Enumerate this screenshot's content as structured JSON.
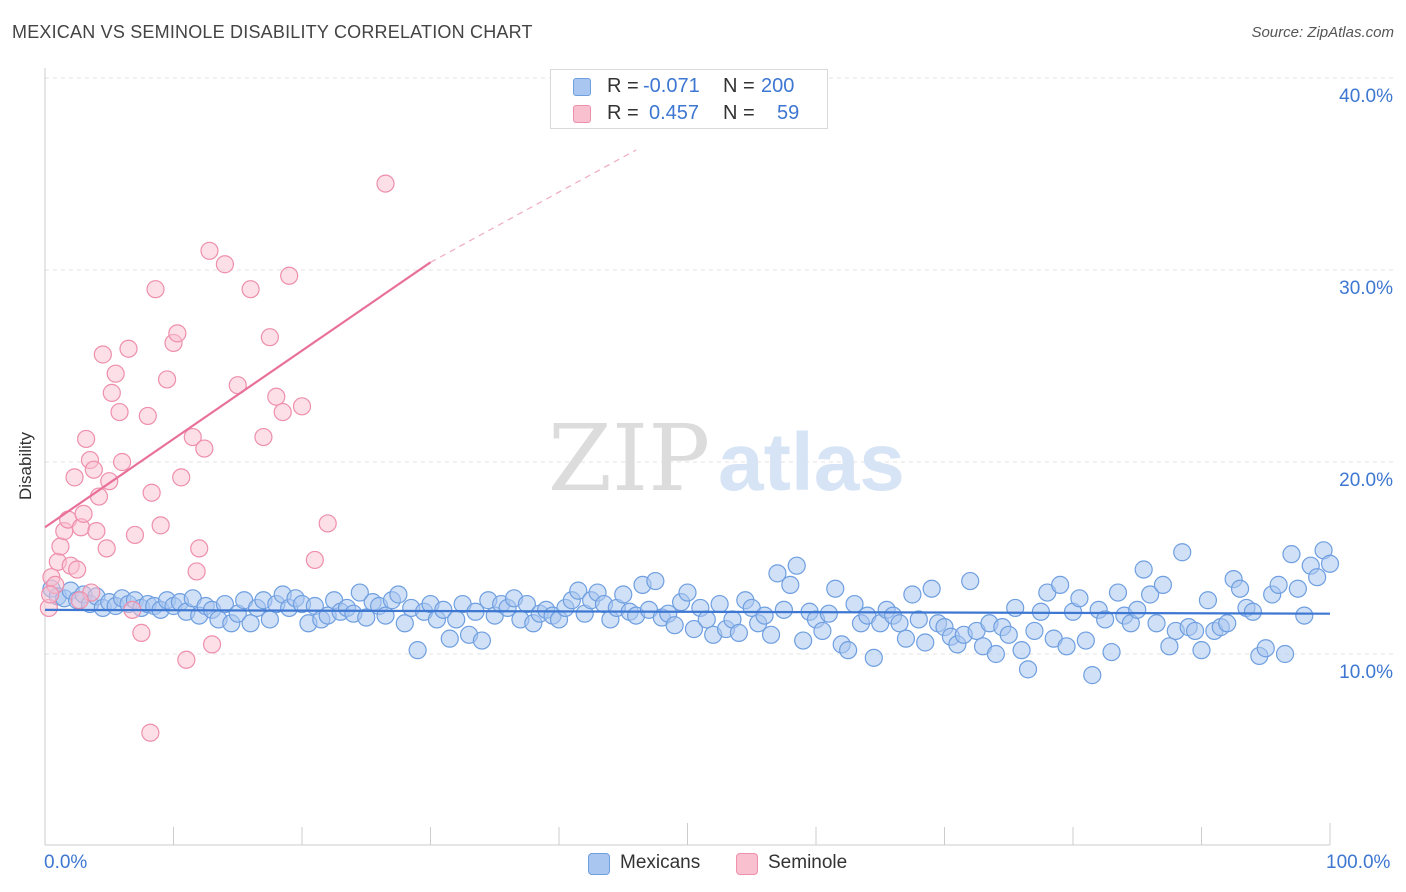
{
  "title": "MEXICAN VS SEMINOLE DISABILITY CORRELATION CHART",
  "source": "Source: ZipAtlas.com",
  "watermark": {
    "zip": "ZIP",
    "atlas": "atlas"
  },
  "legend": {
    "rows": [
      {
        "r_label": "R =",
        "r_value": "-0.071",
        "n_label": "N =",
        "n_value": "200",
        "color": "#a9c6f0",
        "border": "#6f9fe0"
      },
      {
        "r_label": "R =",
        "r_value": "0.457",
        "n_label": "N =",
        "n_value": "59",
        "color": "#f9c0d0",
        "border": "#ee8fac"
      }
    ]
  },
  "bottom_legend": [
    {
      "label": "Mexicans",
      "color": "#a9c6f0",
      "border": "#6f9fe0"
    },
    {
      "label": "Seminole",
      "color": "#f9c0d0",
      "border": "#ee8fac"
    }
  ],
  "axes": {
    "x_min_label": "0.0%",
    "x_max_label": "100.0%",
    "y_label": "Disability",
    "y_ticks": [
      "10.0%",
      "20.0%",
      "30.0%",
      "40.0%"
    ]
  },
  "chart_data": {
    "type": "scatter",
    "title": "MEXICAN VS SEMINOLE DISABILITY CORRELATION CHART",
    "xlabel": "",
    "ylabel": "Disability",
    "xlim": [
      0,
      100
    ],
    "ylim": [
      0,
      42
    ],
    "y_ticks": [
      10,
      20,
      30,
      40
    ],
    "grid": "horizontal dashed",
    "legend_position": "top-center",
    "series": [
      {
        "name": "Mexicans",
        "color": "#6f9fe0",
        "fill": "#a9c6f0",
        "trend": {
          "x": [
            0,
            100
          ],
          "y": [
            12.3,
            12.1
          ]
        },
        "points": [
          [
            0.5,
            13.4
          ],
          [
            1,
            13.0
          ],
          [
            1.5,
            12.9
          ],
          [
            2,
            13.3
          ],
          [
            2.5,
            12.8
          ],
          [
            3,
            13.1
          ],
          [
            3.5,
            12.6
          ],
          [
            4,
            13.0
          ],
          [
            4.5,
            12.4
          ],
          [
            5,
            12.7
          ],
          [
            5.5,
            12.5
          ],
          [
            6,
            12.9
          ],
          [
            6.5,
            12.6
          ],
          [
            7,
            12.8
          ],
          [
            7.5,
            12.4
          ],
          [
            8,
            12.6
          ],
          [
            8.5,
            12.5
          ],
          [
            9,
            12.3
          ],
          [
            9.5,
            12.8
          ],
          [
            10,
            12.5
          ],
          [
            10.5,
            12.7
          ],
          [
            11,
            12.2
          ],
          [
            11.5,
            12.9
          ],
          [
            12,
            12.0
          ],
          [
            12.5,
            12.5
          ],
          [
            13,
            12.3
          ],
          [
            13.5,
            11.8
          ],
          [
            14,
            12.6
          ],
          [
            14.5,
            11.6
          ],
          [
            15,
            12.1
          ],
          [
            15.5,
            12.8
          ],
          [
            16,
            11.6
          ],
          [
            16.5,
            12.4
          ],
          [
            17,
            12.8
          ],
          [
            17.5,
            11.8
          ],
          [
            18,
            12.6
          ],
          [
            18.5,
            13.1
          ],
          [
            19,
            12.4
          ],
          [
            19.5,
            12.9
          ],
          [
            20,
            12.6
          ],
          [
            20.5,
            11.6
          ],
          [
            21,
            12.5
          ],
          [
            21.5,
            11.8
          ],
          [
            22,
            12.0
          ],
          [
            22.5,
            12.8
          ],
          [
            23,
            12.2
          ],
          [
            23.5,
            12.4
          ],
          [
            24,
            12.1
          ],
          [
            24.5,
            13.2
          ],
          [
            25,
            11.9
          ],
          [
            25.5,
            12.7
          ],
          [
            26,
            12.5
          ],
          [
            26.5,
            12.0
          ],
          [
            27,
            12.8
          ],
          [
            27.5,
            13.1
          ],
          [
            28,
            11.6
          ],
          [
            28.5,
            12.4
          ],
          [
            29,
            10.2
          ],
          [
            29.5,
            12.2
          ],
          [
            30,
            12.6
          ],
          [
            30.5,
            11.8
          ],
          [
            31,
            12.3
          ],
          [
            31.5,
            10.8
          ],
          [
            32,
            11.8
          ],
          [
            32.5,
            12.6
          ],
          [
            33,
            11.0
          ],
          [
            33.5,
            12.2
          ],
          [
            34,
            10.7
          ],
          [
            34.5,
            12.8
          ],
          [
            35,
            12.0
          ],
          [
            35.5,
            12.6
          ],
          [
            36,
            12.4
          ],
          [
            36.5,
            12.9
          ],
          [
            37,
            11.8
          ],
          [
            37.5,
            12.6
          ],
          [
            38,
            11.6
          ],
          [
            38.5,
            12.1
          ],
          [
            39,
            12.3
          ],
          [
            39.5,
            12.0
          ],
          [
            40,
            11.8
          ],
          [
            40.5,
            12.4
          ],
          [
            41,
            12.8
          ],
          [
            41.5,
            13.3
          ],
          [
            42,
            12.1
          ],
          [
            42.5,
            12.8
          ],
          [
            43,
            13.2
          ],
          [
            43.5,
            12.6
          ],
          [
            44,
            11.8
          ],
          [
            44.5,
            12.4
          ],
          [
            45,
            13.1
          ],
          [
            45.5,
            12.2
          ],
          [
            46,
            12.0
          ],
          [
            46.5,
            13.6
          ],
          [
            47,
            12.3
          ],
          [
            47.5,
            13.8
          ],
          [
            48,
            11.9
          ],
          [
            48.5,
            12.1
          ],
          [
            49,
            11.5
          ],
          [
            49.5,
            12.7
          ],
          [
            50,
            13.2
          ],
          [
            50.5,
            11.3
          ],
          [
            51,
            12.4
          ],
          [
            51.5,
            11.8
          ],
          [
            52,
            11.0
          ],
          [
            52.5,
            12.6
          ],
          [
            53,
            11.3
          ],
          [
            53.5,
            11.8
          ],
          [
            54,
            11.1
          ],
          [
            54.5,
            12.8
          ],
          [
            55,
            12.4
          ],
          [
            55.5,
            11.6
          ],
          [
            56,
            12.0
          ],
          [
            56.5,
            11.0
          ],
          [
            57,
            14.2
          ],
          [
            57.5,
            12.3
          ],
          [
            58,
            13.6
          ],
          [
            58.5,
            14.6
          ],
          [
            59,
            10.7
          ],
          [
            59.5,
            12.2
          ],
          [
            60,
            11.8
          ],
          [
            60.5,
            11.2
          ],
          [
            61,
            12.1
          ],
          [
            61.5,
            13.4
          ],
          [
            62,
            10.5
          ],
          [
            62.5,
            10.2
          ],
          [
            63,
            12.6
          ],
          [
            63.5,
            11.6
          ],
          [
            64,
            12.0
          ],
          [
            64.5,
            9.8
          ],
          [
            65,
            11.6
          ],
          [
            65.5,
            12.3
          ],
          [
            66,
            12.0
          ],
          [
            66.5,
            11.6
          ],
          [
            67,
            10.8
          ],
          [
            67.5,
            13.1
          ],
          [
            68,
            11.8
          ],
          [
            68.5,
            10.6
          ],
          [
            69,
            13.4
          ],
          [
            69.5,
            11.6
          ],
          [
            70,
            11.4
          ],
          [
            70.5,
            10.9
          ],
          [
            71,
            10.5
          ],
          [
            71.5,
            11.0
          ],
          [
            72,
            13.8
          ],
          [
            72.5,
            11.2
          ],
          [
            73,
            10.4
          ],
          [
            73.5,
            11.6
          ],
          [
            74,
            10.0
          ],
          [
            74.5,
            11.4
          ],
          [
            75,
            11.0
          ],
          [
            75.5,
            12.4
          ],
          [
            76,
            10.2
          ],
          [
            76.5,
            9.2
          ],
          [
            77,
            11.2
          ],
          [
            77.5,
            12.2
          ],
          [
            78,
            13.2
          ],
          [
            78.5,
            10.8
          ],
          [
            79,
            13.6
          ],
          [
            79.5,
            10.4
          ],
          [
            80,
            12.2
          ],
          [
            80.5,
            12.9
          ],
          [
            81,
            10.7
          ],
          [
            81.5,
            8.9
          ],
          [
            82,
            12.3
          ],
          [
            82.5,
            11.8
          ],
          [
            83,
            10.1
          ],
          [
            83.5,
            13.2
          ],
          [
            84,
            12.0
          ],
          [
            84.5,
            11.6
          ],
          [
            85,
            12.3
          ],
          [
            85.5,
            14.4
          ],
          [
            86,
            13.1
          ],
          [
            86.5,
            11.6
          ],
          [
            87,
            13.6
          ],
          [
            87.5,
            10.4
          ],
          [
            88,
            11.2
          ],
          [
            88.5,
            15.3
          ],
          [
            89,
            11.4
          ],
          [
            89.5,
            11.2
          ],
          [
            90,
            10.2
          ],
          [
            90.5,
            12.8
          ],
          [
            91,
            11.2
          ],
          [
            91.5,
            11.4
          ],
          [
            92,
            11.6
          ],
          [
            92.5,
            13.9
          ],
          [
            93,
            13.4
          ],
          [
            93.5,
            12.4
          ],
          [
            94,
            12.2
          ],
          [
            94.5,
            9.9
          ],
          [
            95,
            10.3
          ],
          [
            95.5,
            13.1
          ],
          [
            96,
            13.6
          ],
          [
            96.5,
            10.0
          ],
          [
            97,
            15.2
          ],
          [
            97.5,
            13.4
          ],
          [
            98,
            12.0
          ],
          [
            98.5,
            14.6
          ],
          [
            99,
            14.0
          ],
          [
            99.5,
            15.4
          ],
          [
            100,
            14.7
          ]
        ]
      },
      {
        "name": "Seminole",
        "color": "#ee8fac",
        "fill": "#f9c0d0",
        "trend": {
          "x": [
            0,
            30,
            100
          ],
          "y": [
            16.6,
            30.4,
            56.0
          ]
        },
        "points": [
          [
            0.3,
            12.4
          ],
          [
            0.5,
            14.0
          ],
          [
            0.8,
            13.6
          ],
          [
            1,
            14.8
          ],
          [
            1.2,
            15.6
          ],
          [
            1.5,
            16.4
          ],
          [
            1.8,
            17.0
          ],
          [
            2,
            14.6
          ],
          [
            2.3,
            19.2
          ],
          [
            2.5,
            14.4
          ],
          [
            2.8,
            16.6
          ],
          [
            3,
            17.3
          ],
          [
            3.2,
            21.2
          ],
          [
            3.5,
            20.1
          ],
          [
            3.8,
            19.6
          ],
          [
            4,
            16.4
          ],
          [
            4.2,
            18.2
          ],
          [
            4.5,
            25.6
          ],
          [
            4.8,
            15.5
          ],
          [
            5,
            19.0
          ],
          [
            5.2,
            23.6
          ],
          [
            5.5,
            24.6
          ],
          [
            5.8,
            22.6
          ],
          [
            6,
            20.0
          ],
          [
            6.5,
            25.9
          ],
          [
            7,
            16.2
          ],
          [
            7.5,
            11.1
          ],
          [
            8,
            22.4
          ],
          [
            8.3,
            18.4
          ],
          [
            8.6,
            29.0
          ],
          [
            9,
            16.7
          ],
          [
            9.5,
            24.3
          ],
          [
            10,
            26.2
          ],
          [
            10.3,
            26.7
          ],
          [
            10.6,
            19.2
          ],
          [
            11,
            9.7
          ],
          [
            11.5,
            21.3
          ],
          [
            11.8,
            14.3
          ],
          [
            12,
            15.5
          ],
          [
            12.4,
            20.7
          ],
          [
            12.8,
            31.0
          ],
          [
            13,
            10.5
          ],
          [
            14,
            30.3
          ],
          [
            15,
            24.0
          ],
          [
            16,
            29.0
          ],
          [
            17,
            21.3
          ],
          [
            17.5,
            26.5
          ],
          [
            18,
            23.4
          ],
          [
            18.5,
            22.6
          ],
          [
            19,
            29.7
          ],
          [
            20,
            22.9
          ],
          [
            21,
            14.9
          ],
          [
            22,
            16.8
          ],
          [
            26.5,
            34.5
          ],
          [
            8.2,
            5.9
          ],
          [
            6.8,
            12.3
          ],
          [
            3.6,
            13.2
          ],
          [
            2.7,
            12.8
          ],
          [
            0.4,
            13.1
          ]
        ]
      }
    ]
  }
}
